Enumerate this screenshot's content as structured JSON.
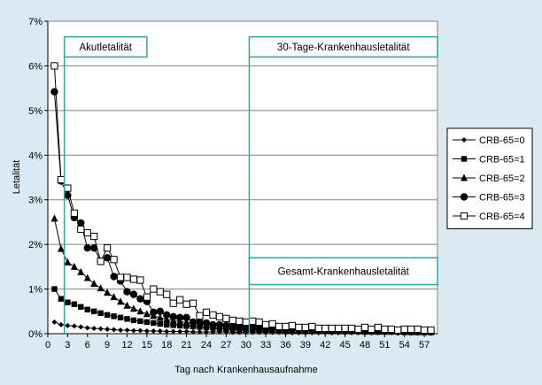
{
  "colors": {
    "background": "#dbe9f2",
    "plot_background": "#ffffff",
    "grid": "#808080",
    "annotation": "#2aa6a6",
    "series": "#000000"
  },
  "chart_data": {
    "type": "line",
    "xlabel": "Tag nach Krankenhausaufnahme",
    "ylabel": "Letalität",
    "xlim": [
      0,
      59
    ],
    "ylim": [
      0,
      7
    ],
    "x_ticks": [
      0,
      3,
      6,
      9,
      12,
      15,
      18,
      21,
      24,
      27,
      30,
      33,
      36,
      39,
      42,
      45,
      48,
      51,
      54,
      57
    ],
    "y_ticks": [
      0,
      1,
      2,
      3,
      4,
      5,
      6,
      7
    ],
    "y_tick_labels": [
      "0%",
      "1%",
      "2%",
      "3%",
      "4%",
      "5%",
      "6%",
      "7%"
    ],
    "grid": "horizontal",
    "legend_position": "right",
    "x": [
      1,
      2,
      3,
      4,
      5,
      6,
      7,
      8,
      9,
      10,
      11,
      12,
      13,
      14,
      15,
      16,
      17,
      18,
      19,
      20,
      21,
      22,
      23,
      24,
      25,
      26,
      27,
      28,
      29,
      30,
      31,
      32,
      33,
      34,
      35,
      36,
      37,
      38,
      39,
      40,
      41,
      42,
      43,
      44,
      45,
      46,
      47,
      48,
      49,
      50,
      51,
      52,
      53,
      54,
      55,
      56,
      57,
      58
    ],
    "series": [
      {
        "name": "CRB-65=0",
        "marker": "diamond",
        "values": [
          0.26,
          0.2,
          0.18,
          0.17,
          0.15,
          0.13,
          0.12,
          0.11,
          0.1,
          0.09,
          0.08,
          0.08,
          0.07,
          0.07,
          0.06,
          0.06,
          0.06,
          0.05,
          0.05,
          0.05,
          0.05,
          0.04,
          0.04,
          0.04,
          0.04,
          0.04,
          0.04,
          0.03,
          0.03,
          0.03,
          0.03,
          0.03,
          0.03,
          0.03,
          0.03,
          0.02,
          0.02,
          0.02,
          0.02,
          0.02,
          0.02,
          0.02,
          0.02,
          0.02,
          0.02,
          0.02,
          0.02,
          0.02,
          0.02,
          0.02,
          0.02,
          0.02,
          0.01,
          0.01,
          0.01,
          0.01,
          0.01,
          0.01
        ]
      },
      {
        "name": "CRB-65=1",
        "marker": "square",
        "values": [
          1.0,
          0.78,
          0.7,
          0.66,
          0.6,
          0.54,
          0.5,
          0.46,
          0.42,
          0.39,
          0.36,
          0.33,
          0.3,
          0.28,
          0.26,
          0.24,
          0.22,
          0.2,
          0.19,
          0.18,
          0.17,
          0.16,
          0.15,
          0.14,
          0.13,
          0.12,
          0.11,
          0.11,
          0.1,
          0.1,
          0.09,
          0.09,
          0.08,
          0.08,
          0.08,
          0.07,
          0.07,
          0.07,
          0.06,
          0.06,
          0.06,
          0.06,
          0.05,
          0.05,
          0.05,
          0.05,
          0.05,
          0.04,
          0.04,
          0.04,
          0.04,
          0.04,
          0.04,
          0.03,
          0.03,
          0.03,
          0.03,
          0.03
        ]
      },
      {
        "name": "CRB-65=2",
        "marker": "triangle",
        "values": [
          2.58,
          1.9,
          1.6,
          1.5,
          1.38,
          1.25,
          1.12,
          1.02,
          0.92,
          0.82,
          0.72,
          0.63,
          0.56,
          0.5,
          0.44,
          0.4,
          0.36,
          0.32,
          0.29,
          0.27,
          0.25,
          0.23,
          0.21,
          0.19,
          0.18,
          0.17,
          0.16,
          0.15,
          0.14,
          0.13,
          0.12,
          0.12,
          0.11,
          0.1,
          0.1,
          0.1,
          0.09,
          0.09,
          0.08,
          0.08,
          0.08,
          0.07,
          0.07,
          0.07,
          0.07,
          0.06,
          0.06,
          0.06,
          0.06,
          0.05,
          0.05,
          0.05,
          0.05,
          0.05,
          0.04,
          0.04,
          0.04,
          0.04
        ]
      },
      {
        "name": "CRB-65=3",
        "marker": "circle",
        "values": [
          5.42,
          3.42,
          3.1,
          2.6,
          2.48,
          1.92,
          1.92,
          1.62,
          1.7,
          1.28,
          1.18,
          0.94,
          0.88,
          0.78,
          0.72,
          0.48,
          0.5,
          0.42,
          0.38,
          0.36,
          0.36,
          0.26,
          0.26,
          0.24,
          0.2,
          0.2,
          0.18,
          0.16,
          0.16,
          0.14,
          0.14,
          0.14,
          0.12,
          0.12,
          0.12,
          0.1,
          0.1,
          0.1,
          0.1,
          0.1,
          0.08,
          0.08,
          0.08,
          0.08,
          0.08,
          0.08,
          0.06,
          0.06,
          0.06,
          0.06,
          0.06,
          0.06,
          0.05,
          0.05,
          0.05,
          0.05,
          0.04,
          0.04
        ]
      },
      {
        "name": "CRB-65=4",
        "marker": "square-open",
        "values": [
          6.0,
          3.45,
          3.26,
          2.7,
          2.34,
          2.26,
          2.18,
          1.62,
          1.92,
          1.66,
          1.26,
          1.26,
          1.22,
          1.2,
          0.82,
          1.0,
          0.94,
          0.88,
          0.68,
          0.76,
          0.66,
          0.68,
          0.4,
          0.48,
          0.42,
          0.38,
          0.34,
          0.3,
          0.28,
          0.26,
          0.28,
          0.26,
          0.2,
          0.22,
          0.16,
          0.16,
          0.18,
          0.14,
          0.14,
          0.16,
          0.12,
          0.12,
          0.12,
          0.12,
          0.12,
          0.12,
          0.1,
          0.14,
          0.1,
          0.14,
          0.1,
          0.1,
          0.08,
          0.1,
          0.1,
          0.1,
          0.08,
          0.08
        ]
      }
    ],
    "annotations": [
      {
        "text": "Akutletalität",
        "box_x": [
          2.5,
          15
        ],
        "box_y": [
          6.2,
          6.65
        ]
      },
      {
        "text": "30-Tage-Krankenhausletalität",
        "box_x": [
          30.5,
          59
        ],
        "box_y": [
          6.2,
          6.65
        ]
      },
      {
        "text": "Gesamt-Krankenhausletalität",
        "box_x": [
          30.5,
          59
        ],
        "box_y": [
          1.1,
          1.7
        ]
      }
    ],
    "vlines": [
      {
        "x": 2.5,
        "y_to": 6.2
      },
      {
        "x": 30.5,
        "y_to": 6.2
      }
    ]
  }
}
